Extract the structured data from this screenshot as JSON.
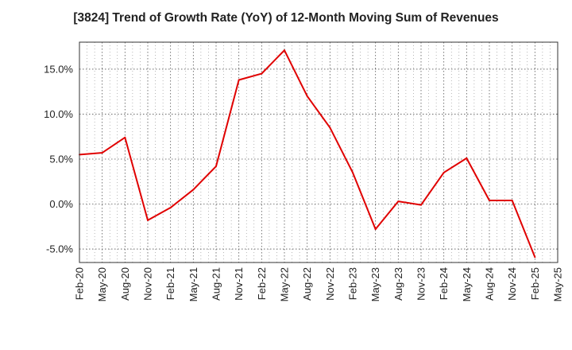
{
  "chart_data": {
    "type": "line",
    "title": "[3824]  Trend of Growth Rate (YoY) of 12-Month Moving Sum of Revenues",
    "xlabel": "",
    "ylabel": "",
    "x_tick_labels": [
      "Feb-20",
      "May-20",
      "Aug-20",
      "Nov-20",
      "Feb-21",
      "May-21",
      "Aug-21",
      "Nov-21",
      "Feb-22",
      "May-22",
      "Aug-22",
      "Nov-22",
      "Feb-23",
      "May-23",
      "Aug-23",
      "Nov-23",
      "Feb-24",
      "May-24",
      "Aug-24",
      "Nov-24",
      "Feb-25",
      "May-25"
    ],
    "y_ticks": [
      15.0,
      10.0,
      5.0,
      0.0,
      -5.0
    ],
    "y_tick_labels": [
      "15.0%",
      "10.0%",
      "5.0%",
      "0.0%",
      "-5.0%"
    ],
    "ylim": [
      -6.5,
      18.0
    ],
    "grid": true,
    "series": [
      {
        "color": "#e00000",
        "x": [
          "Feb-20",
          "May-20",
          "Aug-20",
          "Nov-20",
          "Feb-21",
          "May-21",
          "Aug-21",
          "Nov-21",
          "Feb-22",
          "May-22",
          "Aug-22",
          "Nov-22",
          "Feb-23",
          "May-23",
          "Aug-23",
          "Nov-23",
          "Feb-24",
          "May-24",
          "Aug-24",
          "Nov-24",
          "Feb-25"
        ],
        "values": [
          5.5,
          5.7,
          7.4,
          -1.8,
          -0.4,
          1.6,
          4.2,
          13.8,
          14.5,
          17.1,
          12.0,
          8.5,
          3.5,
          -2.8,
          0.3,
          -0.1,
          3.5,
          5.1,
          0.4,
          0.4,
          -5.9
        ]
      }
    ]
  }
}
